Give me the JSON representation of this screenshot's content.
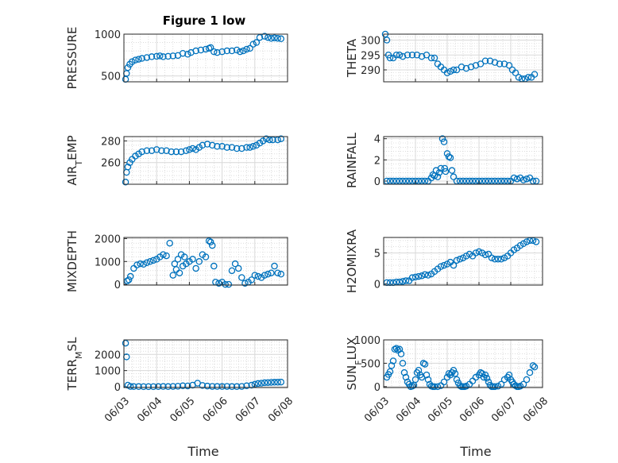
{
  "figure": {
    "title": "Figure 1 low"
  },
  "colors": {
    "marker": "#0072bd",
    "axes": "#262626",
    "grid": "#d9d9d9"
  },
  "chart_data": [
    {
      "type": "scatter",
      "ylabel": "PRESSURE",
      "ylabel_sub": "",
      "ylabel_rest": "",
      "ylim": [
        430,
        1000
      ],
      "yticks": [
        500,
        1000
      ],
      "x": [
        0.05,
        0.08,
        0.12,
        0.18,
        0.25,
        0.35,
        0.45,
        0.55,
        0.7,
        0.85,
        1.0,
        1.1,
        1.2,
        1.35,
        1.5,
        1.65,
        1.8,
        1.95,
        2.05,
        2.2,
        2.35,
        2.5,
        2.6,
        2.65,
        2.75,
        2.85,
        3.0,
        3.15,
        3.3,
        3.45,
        3.55,
        3.65,
        3.75,
        3.85,
        3.95,
        4.05,
        4.15,
        4.3,
        4.4,
        4.5,
        4.6,
        4.7,
        4.8
      ],
      "y": [
        460,
        530,
        600,
        640,
        670,
        690,
        700,
        710,
        720,
        730,
        735,
        740,
        730,
        735,
        740,
        745,
        770,
        760,
        780,
        800,
        810,
        820,
        830,
        840,
        790,
        780,
        790,
        800,
        800,
        810,
        790,
        800,
        820,
        830,
        880,
        900,
        960,
        975,
        960,
        950,
        955,
        950,
        945
      ]
    },
    {
      "type": "scatter",
      "ylabel": "THETA",
      "ylabel_sub": "",
      "ylabel_rest": "",
      "ylim": [
        286,
        302
      ],
      "yticks": [
        290,
        295,
        300
      ],
      "x": [
        0.05,
        0.1,
        0.15,
        0.2,
        0.3,
        0.4,
        0.5,
        0.6,
        0.75,
        0.9,
        1.05,
        1.2,
        1.35,
        1.5,
        1.6,
        1.7,
        1.8,
        1.9,
        2.0,
        2.1,
        2.2,
        2.3,
        2.45,
        2.6,
        2.75,
        2.9,
        3.05,
        3.2,
        3.35,
        3.5,
        3.65,
        3.8,
        3.95,
        4.05,
        4.15,
        4.25,
        4.35,
        4.45,
        4.55,
        4.65,
        4.75
      ],
      "y": [
        302,
        300,
        295,
        294,
        294,
        295,
        295,
        294.5,
        295,
        295,
        295,
        294.5,
        295,
        294,
        294,
        292,
        291,
        290,
        289,
        289.5,
        290,
        290,
        291,
        290.5,
        291,
        291.5,
        292,
        293,
        293,
        292.5,
        292,
        292,
        291.5,
        290,
        289,
        287.5,
        287,
        287,
        287.5,
        287.5,
        288.5
      ]
    },
    {
      "type": "scatter",
      "ylabel": "AIR",
      "ylabel_sub": "T",
      "ylabel_rest": "EMP",
      "ylim": [
        240,
        284
      ],
      "yticks": [
        260,
        280
      ],
      "x": [
        0.05,
        0.08,
        0.12,
        0.18,
        0.25,
        0.35,
        0.45,
        0.55,
        0.7,
        0.85,
        1.0,
        1.15,
        1.3,
        1.45,
        1.6,
        1.75,
        1.9,
        2.0,
        2.1,
        2.2,
        2.3,
        2.4,
        2.55,
        2.7,
        2.85,
        3.0,
        3.15,
        3.3,
        3.45,
        3.6,
        3.75,
        3.85,
        3.95,
        4.05,
        4.15,
        4.25,
        4.35,
        4.45,
        4.55,
        4.7,
        4.8
      ],
      "y": [
        242,
        251,
        256,
        260,
        263,
        266,
        268,
        270,
        271,
        271,
        272,
        271,
        271,
        270,
        270,
        270,
        271,
        272,
        273,
        272,
        274,
        276,
        277,
        276,
        275,
        275,
        274,
        274,
        273,
        273,
        274,
        274,
        275,
        276,
        278,
        280,
        282,
        281,
        281,
        281,
        282
      ]
    },
    {
      "type": "scatter",
      "ylabel": "RAINFALL",
      "ylabel_sub": "",
      "ylabel_rest": "",
      "ylim": [
        -0.3,
        4.2
      ],
      "yticks": [
        0,
        2,
        4
      ],
      "x": [
        0.1,
        0.2,
        0.3,
        0.4,
        0.5,
        0.6,
        0.7,
        0.8,
        0.9,
        1.0,
        1.1,
        1.2,
        1.3,
        1.4,
        1.5,
        1.55,
        1.6,
        1.65,
        1.7,
        1.75,
        1.8,
        1.85,
        1.9,
        1.92,
        1.95,
        2.0,
        2.05,
        2.1,
        2.15,
        2.2,
        2.3,
        2.4,
        2.5,
        2.6,
        2.7,
        2.8,
        2.9,
        3.0,
        3.1,
        3.2,
        3.3,
        3.4,
        3.5,
        3.6,
        3.7,
        3.8,
        3.9,
        4.0,
        4.1,
        4.2,
        4.3,
        4.4,
        4.5,
        4.6,
        4.7,
        4.8
      ],
      "y": [
        0,
        0,
        0,
        0,
        0,
        0,
        0,
        0,
        0,
        0,
        0,
        0,
        0,
        0,
        0.3,
        0.6,
        0.5,
        1.0,
        0.4,
        0.8,
        1.2,
        4.0,
        3.7,
        1.2,
        0.9,
        2.6,
        2.3,
        2.2,
        1.0,
        0.4,
        0,
        0,
        0,
        0,
        0,
        0,
        0,
        0,
        0,
        0,
        0,
        0,
        0,
        0,
        0,
        0,
        0,
        0,
        0.3,
        0.2,
        0.3,
        0.1,
        0.2,
        0.3,
        0,
        0
      ]
    },
    {
      "type": "scatter",
      "ylabel": "MIXDEPTH",
      "ylabel_sub": "",
      "ylabel_rest": "",
      "ylim": [
        -30,
        2050
      ],
      "yticks": [
        0,
        1000,
        2000
      ],
      "x": [
        0.1,
        0.15,
        0.2,
        0.3,
        0.4,
        0.5,
        0.6,
        0.7,
        0.8,
        0.9,
        1.0,
        1.1,
        1.2,
        1.3,
        1.4,
        1.5,
        1.55,
        1.6,
        1.65,
        1.7,
        1.75,
        1.8,
        1.85,
        1.9,
        2.0,
        2.1,
        2.2,
        2.3,
        2.4,
        2.5,
        2.6,
        2.65,
        2.7,
        2.75,
        2.8,
        2.9,
        3.0,
        3.1,
        3.2,
        3.3,
        3.4,
        3.5,
        3.6,
        3.7,
        3.8,
        3.9,
        4.0,
        4.1,
        4.2,
        4.3,
        4.4,
        4.5,
        4.6,
        4.7,
        4.8
      ],
      "y": [
        150,
        200,
        350,
        700,
        850,
        900,
        880,
        950,
        1000,
        1050,
        1100,
        1200,
        1300,
        1250,
        1800,
        400,
        900,
        650,
        1100,
        500,
        1300,
        800,
        1200,
        900,
        1000,
        1100,
        700,
        1000,
        1300,
        1200,
        1900,
        1850,
        1700,
        800,
        100,
        50,
        100,
        0,
        0,
        600,
        900,
        700,
        300,
        50,
        100,
        200,
        400,
        350,
        300,
        400,
        450,
        500,
        800,
        500,
        450
      ]
    },
    {
      "type": "scatter",
      "ylabel": "H2OMIXRA",
      "ylabel_sub": "",
      "ylabel_rest": "",
      "ylim": [
        -0.2,
        7.5
      ],
      "yticks": [
        0,
        5
      ],
      "x": [
        0.1,
        0.2,
        0.3,
        0.4,
        0.5,
        0.6,
        0.7,
        0.8,
        0.9,
        1.0,
        1.1,
        1.2,
        1.3,
        1.4,
        1.5,
        1.6,
        1.7,
        1.8,
        1.9,
        2.0,
        2.1,
        2.2,
        2.3,
        2.4,
        2.5,
        2.6,
        2.7,
        2.8,
        2.9,
        3.0,
        3.1,
        3.2,
        3.3,
        3.4,
        3.5,
        3.6,
        3.7,
        3.8,
        3.9,
        4.0,
        4.1,
        4.2,
        4.3,
        4.4,
        4.5,
        4.6,
        4.7,
        4.8
      ],
      "y": [
        0.2,
        0.2,
        0.2,
        0.3,
        0.3,
        0.4,
        0.5,
        0.5,
        1.0,
        1.1,
        1.2,
        1.3,
        1.5,
        1.4,
        1.6,
        2.0,
        2.4,
        2.8,
        3.0,
        3.2,
        3.5,
        3.0,
        3.8,
        4.0,
        4.2,
        4.5,
        4.8,
        4.5,
        5.0,
        5.2,
        5.0,
        4.7,
        4.8,
        4.2,
        4.0,
        4.0,
        4.0,
        4.2,
        4.5,
        5.0,
        5.5,
        5.8,
        6.2,
        6.5,
        6.8,
        7.0,
        7.0,
        6.8
      ]
    },
    {
      "type": "scatter",
      "ylabel": "TERR",
      "ylabel_sub": "M",
      "ylabel_rest": "SL",
      "ylim": [
        -50,
        2900
      ],
      "yticks": [
        0,
        1000,
        2000
      ],
      "x": [
        0.05,
        0.08,
        0.12,
        0.2,
        0.3,
        0.45,
        0.6,
        0.75,
        0.9,
        1.05,
        1.2,
        1.35,
        1.5,
        1.65,
        1.8,
        1.95,
        2.1,
        2.25,
        2.4,
        2.55,
        2.7,
        2.85,
        3.0,
        3.15,
        3.3,
        3.45,
        3.6,
        3.75,
        3.9,
        4.0,
        4.1,
        4.2,
        4.3,
        4.4,
        4.5,
        4.6,
        4.7,
        4.8
      ],
      "y": [
        2700,
        1850,
        100,
        20,
        10,
        10,
        5,
        5,
        5,
        10,
        15,
        10,
        20,
        30,
        60,
        50,
        100,
        220,
        80,
        40,
        20,
        15,
        15,
        20,
        10,
        10,
        20,
        60,
        100,
        150,
        200,
        220,
        250,
        260,
        270,
        280,
        280,
        290
      ]
    },
    {
      "type": "scatter",
      "ylabel": "SUN",
      "ylabel_sub": "F",
      "ylabel_rest": "LUX",
      "ylim": [
        -20,
        1000
      ],
      "yticks": [
        0,
        500,
        1000
      ],
      "x": [
        0.1,
        0.15,
        0.2,
        0.25,
        0.3,
        0.35,
        0.4,
        0.45,
        0.5,
        0.55,
        0.6,
        0.65,
        0.7,
        0.75,
        0.8,
        0.85,
        0.9,
        0.95,
        1.0,
        1.05,
        1.1,
        1.15,
        1.2,
        1.25,
        1.3,
        1.35,
        1.4,
        1.45,
        1.5,
        1.55,
        1.6,
        1.7,
        1.8,
        1.9,
        2.0,
        2.05,
        2.1,
        2.15,
        2.2,
        2.25,
        2.3,
        2.35,
        2.4,
        2.45,
        2.5,
        2.55,
        2.6,
        2.7,
        2.8,
        2.9,
        3.0,
        3.05,
        3.1,
        3.15,
        3.2,
        3.25,
        3.3,
        3.35,
        3.4,
        3.45,
        3.5,
        3.6,
        3.7,
        3.8,
        3.9,
        3.95,
        4.0,
        4.05,
        4.1,
        4.15,
        4.2,
        4.25,
        4.3,
        4.4,
        4.5,
        4.6,
        4.7,
        4.75
      ],
      "y": [
        200,
        260,
        320,
        450,
        550,
        800,
        820,
        780,
        800,
        700,
        500,
        300,
        200,
        100,
        50,
        0,
        10,
        30,
        150,
        300,
        350,
        250,
        200,
        500,
        480,
        250,
        150,
        50,
        10,
        0,
        0,
        0,
        20,
        100,
        200,
        280,
        250,
        300,
        350,
        280,
        150,
        80,
        20,
        0,
        0,
        0,
        10,
        50,
        120,
        200,
        250,
        300,
        280,
        200,
        250,
        180,
        100,
        30,
        0,
        0,
        0,
        10,
        50,
        150,
        200,
        250,
        150,
        100,
        50,
        20,
        0,
        0,
        10,
        50,
        150,
        300,
        450,
        420
      ]
    }
  ],
  "shared_x": {
    "label": "Time",
    "ticks": [
      "06/03",
      "06/04",
      "06/05",
      "06/06",
      "06/07",
      "06/08"
    ]
  }
}
